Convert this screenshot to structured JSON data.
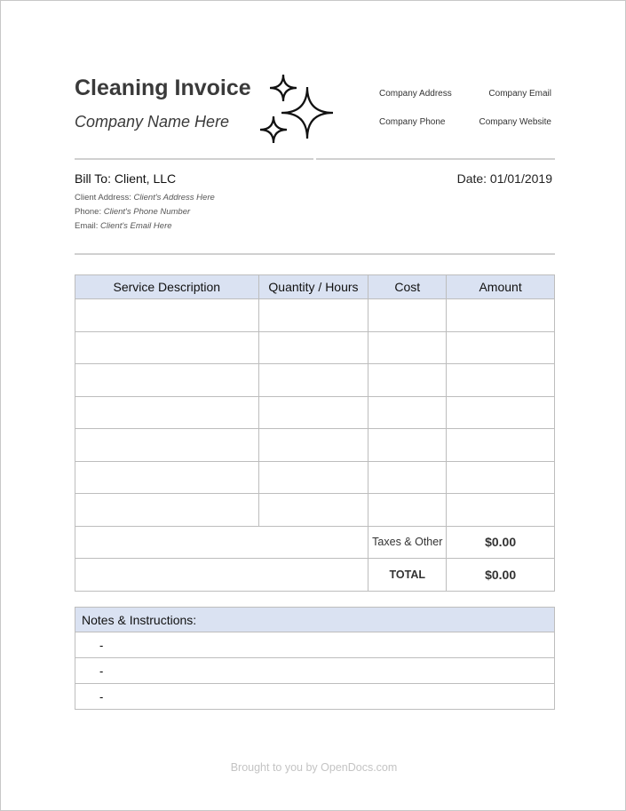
{
  "header": {
    "title": "Cleaning Invoice",
    "company_name": "Company Name Here",
    "company_address": "Company Address",
    "company_email": "Company Email",
    "company_phone": "Company Phone",
    "company_website": "Company Website",
    "logo_icon": "sparkles-icon"
  },
  "bill": {
    "bill_to": "Bill To: Client, LLC",
    "date": "Date: 01/01/2019",
    "address_label": "Client Address:",
    "address": "Client's Address Here",
    "phone_label": "Phone:",
    "phone": "Client's Phone Number",
    "email_label": "Email:",
    "email": "Client's Email Here"
  },
  "table": {
    "headers": [
      "Service Description",
      "Quantity / Hours",
      "Cost",
      "Amount"
    ],
    "empty_rows": 7,
    "taxes_label": "Taxes & Other",
    "taxes_value": "$0.00",
    "total_label": "TOTAL",
    "total_value": "$0.00"
  },
  "notes": {
    "title": "Notes & Instructions:",
    "items": [
      "-",
      "-",
      "-"
    ]
  },
  "footer": "Brought to you by OpenDocs.com",
  "colors": {
    "header_fill": "#dae2f2",
    "border": "#bdbdbd"
  }
}
